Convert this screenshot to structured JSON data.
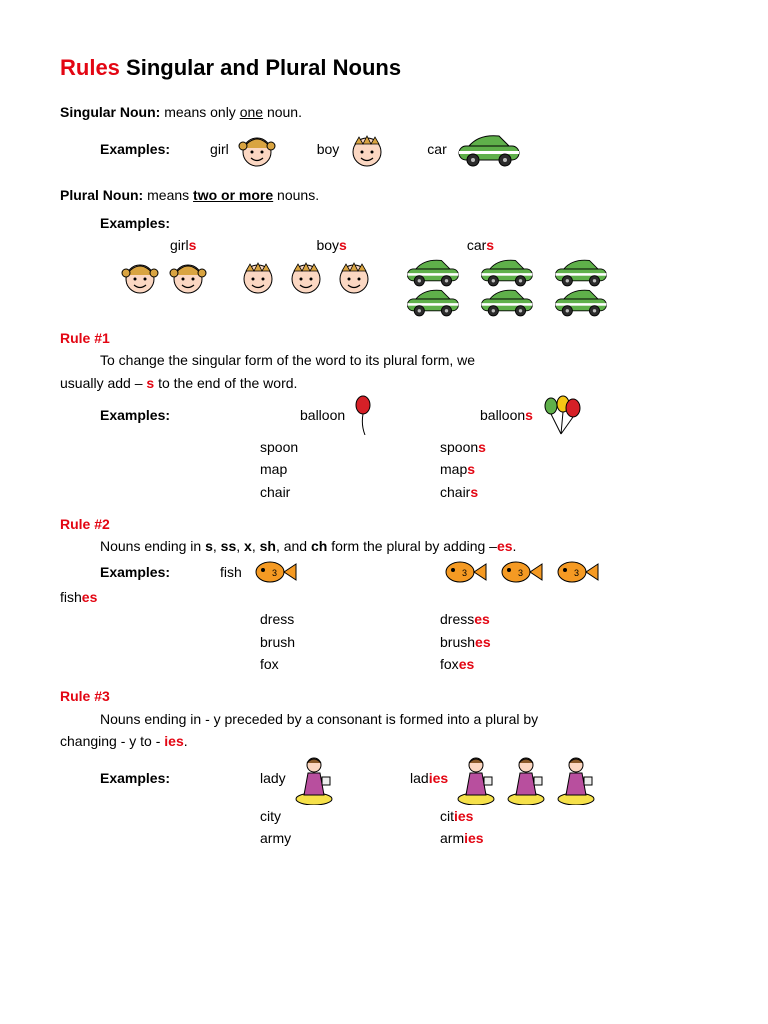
{
  "title": {
    "rules": "Rules",
    "rest": " Singular and Plural Nouns"
  },
  "singular": {
    "label": "Singular Noun:",
    "def_pre": "  means only ",
    "def_u": "one",
    "def_post": " noun.",
    "examples_label": "Examples:",
    "girl": "girl",
    "boy": "boy",
    "car": "car"
  },
  "plural": {
    "label": "Plural Noun:",
    "def_pre": "   means ",
    "def_u": "two or more",
    "def_post": " nouns.",
    "examples_label": "Examples:",
    "girls_base": "girl",
    "girls_s": "s",
    "boys_base": "boy",
    "boys_s": "s",
    "cars_base": "car",
    "cars_s": "s"
  },
  "rule1": {
    "head": "Rule #1",
    "line1": "To change the singular form of the word to its plural form, we",
    "line2a": "usually add – ",
    "line2b": "s",
    "line2c": " to the end of the word.",
    "examples_label": "Examples:",
    "items": [
      {
        "sing": "balloon",
        "plur_base": "balloon",
        "plur_sfx": "s"
      },
      {
        "sing": "spoon",
        "plur_base": "spoon",
        "plur_sfx": "s"
      },
      {
        "sing": "map",
        "plur_base": "map",
        "plur_sfx": "s"
      },
      {
        "sing": "chair",
        "plur_base": "chair",
        "plur_sfx": "s"
      }
    ]
  },
  "rule2": {
    "head": "Rule #2",
    "line_a": "Nouns ending in ",
    "e1": "s",
    "c1": ", ",
    "e2": "ss",
    "c2": ", ",
    "e3": "x",
    "c3": ", ",
    "e4": "sh",
    "c4": ", and ",
    "e5": "ch",
    "line_b": " form the plural by adding –",
    "sfx": "es",
    "dot": ".",
    "examples_label": "Examples:",
    "fish_sing": "fish",
    "fish_base": "fish",
    "fish_sfx": "es",
    "items": [
      {
        "sing": "dress",
        "plur_base": "dress",
        "plur_sfx": "es"
      },
      {
        "sing": "brush",
        "plur_base": "brush",
        "plur_sfx": "es"
      },
      {
        "sing": "fox",
        "plur_base": "fox",
        "plur_sfx": "es"
      }
    ]
  },
  "rule3": {
    "head": "Rule #3",
    "line1": "Nouns ending in - y preceded by a consonant is formed into a plural by",
    "line2a": "changing - y to - ",
    "line2b": "ies",
    "dot": ".",
    "examples_label": "Examples:",
    "items": [
      {
        "sing": "lady",
        "plur_base": "lad",
        "plur_sfx": "ies"
      },
      {
        "sing": "city",
        "plur_base": "cit",
        "plur_sfx": "ies"
      },
      {
        "sing": "army",
        "plur_base": "arm",
        "plur_sfx": "ies"
      }
    ]
  },
  "colors": {
    "red": "#e30613",
    "face": "#fbd7c2",
    "hair": "#d9a441",
    "car_body": "#5fb04a",
    "car_stripe": "#ffffff",
    "car_wheel": "#2b2b2b",
    "fish": "#f59a23",
    "balloon_red": "#d62027",
    "balloon_yellow": "#f6c615",
    "lady_dress": "#b84f9e",
    "lady_plat": "#f6e14a"
  }
}
